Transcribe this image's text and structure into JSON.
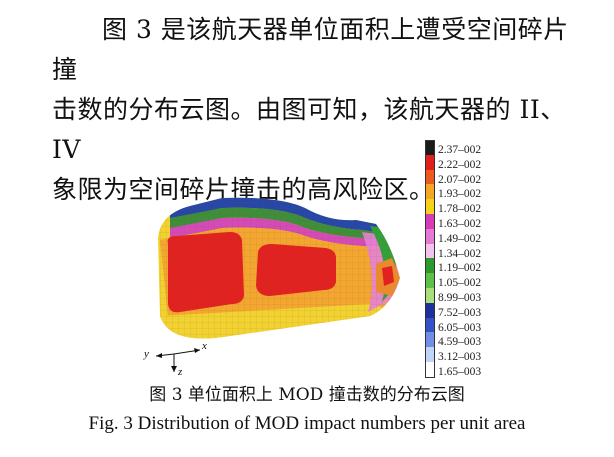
{
  "paragraph": {
    "line1": "图 3 是该航天器单位面积上遭受空间碎片撞",
    "line2": "击数的分布云图。由图可知，该航天器的 II、IV",
    "line3": "象限为空间碎片撞击的高风险区。"
  },
  "figure": {
    "legend": [
      {
        "label": "2.37–002",
        "color": "#1a1a1a"
      },
      {
        "label": "2.22–002",
        "color": "#e0201c"
      },
      {
        "label": "2.07–002",
        "color": "#ee5a1e"
      },
      {
        "label": "1.93–002",
        "color": "#f5a623"
      },
      {
        "label": "1.78–002",
        "color": "#f6d01a"
      },
      {
        "label": "1.63–002",
        "color": "#d63bb8"
      },
      {
        "label": "1.49–002",
        "color": "#e57ad4"
      },
      {
        "label": "1.34–002",
        "color": "#f4c2ee"
      },
      {
        "label": "1.19–002",
        "color": "#2e9a2e"
      },
      {
        "label": "1.05–002",
        "color": "#5cc04a"
      },
      {
        "label": "8.99–003",
        "color": "#a8e07a"
      },
      {
        "label": "7.52–003",
        "color": "#1f2f9c"
      },
      {
        "label": "6.05–003",
        "color": "#3552c8"
      },
      {
        "label": "4.59–003",
        "color": "#6f8ee6"
      },
      {
        "label": "3.12–003",
        "color": "#c2d4f6"
      },
      {
        "label": "1.65–003",
        "color": "#ffffff"
      }
    ],
    "axes": {
      "y": "y",
      "x": "x",
      "z": "z"
    }
  },
  "caption": {
    "cn": "图 3 单位面积上 MOD 撞击数的分布云图",
    "en": "Fig. 3    Distribution of MOD impact numbers per unit area"
  }
}
